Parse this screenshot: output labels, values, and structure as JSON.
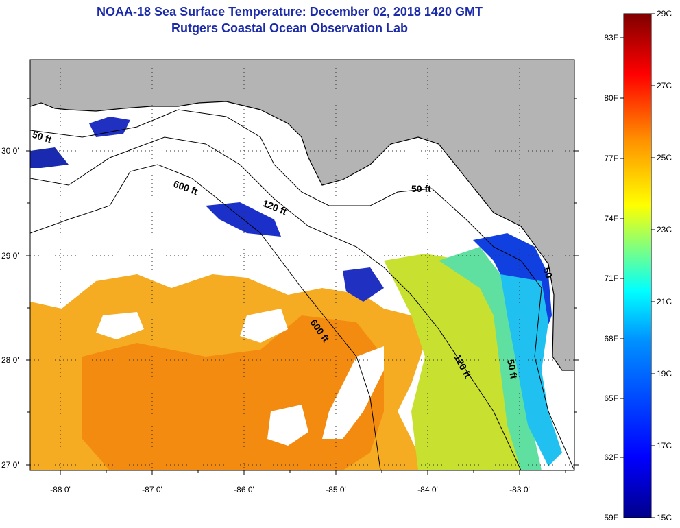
{
  "header": {
    "title_line1": "NOAA-18 Sea Surface Temperature:  December 02, 2018 1420 GMT",
    "title_line2": "Rutgers Coastal Ocean Observation Lab"
  },
  "map": {
    "lon_labels": [
      "-88 0'",
      "-87 0'",
      "-86 0'",
      "-85 0'",
      "-84 0'",
      "-83 0'"
    ],
    "lat_labels": [
      "30 0'",
      "29 0'",
      "28 0'",
      "27 0'"
    ],
    "isobaths": [
      {
        "label": "50 ft"
      },
      {
        "label": "600 ft"
      },
      {
        "label": "120 ft"
      },
      {
        "label": "50 ft"
      },
      {
        "label": "600 ft"
      },
      {
        "label": "120 ft"
      },
      {
        "label": "50 ft"
      },
      {
        "label": "50"
      }
    ]
  },
  "colorbar": {
    "fahrenheit_labels": [
      "83F",
      "80F",
      "77F",
      "74F",
      "71F",
      "68F",
      "65F",
      "62F",
      "59F"
    ],
    "celsius_labels": [
      "29C",
      "27C",
      "25C",
      "23C",
      "21C",
      "19C",
      "17C",
      "15C"
    ],
    "colors": [
      "#800000",
      "#ff0000",
      "#ff8000",
      "#ffff00",
      "#00ffff",
      "#0080ff",
      "#0000ff",
      "#000080"
    ]
  }
}
